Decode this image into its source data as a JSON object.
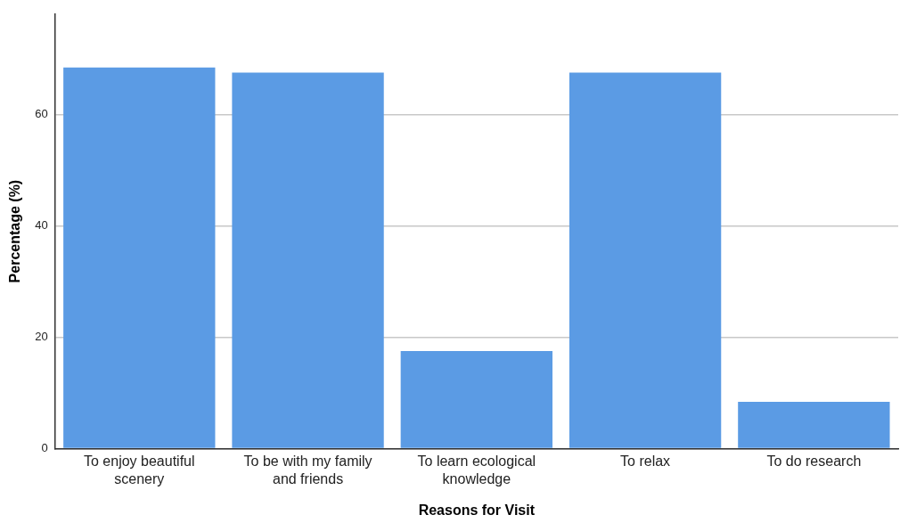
{
  "chart_data": {
    "type": "bar",
    "xlabel": "Reasons for Visit",
    "ylabel": "Percentage (%)",
    "categories": [
      "To enjoy beautiful scenery",
      "To be with my family and friends",
      "To learn ecological knowledge",
      "To relax",
      "To do research"
    ],
    "values": [
      68.4,
      67.5,
      17.5,
      67.5,
      8.4
    ],
    "color": "#5b9be4",
    "ylim": [
      0,
      78
    ],
    "yticks": [
      0,
      20,
      40,
      60
    ],
    "grid": "y"
  }
}
